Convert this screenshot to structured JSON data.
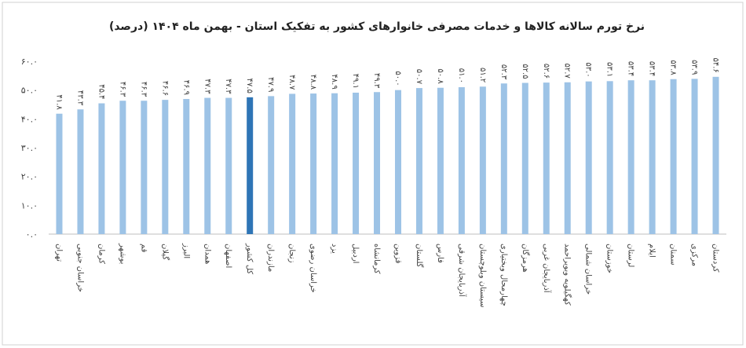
{
  "chart_data": {
    "type": "bar",
    "title": "نرخ تورم سالانه کالاها و خدمات مصرفی خانوارهای کشور به تفکیک استان - بهمن ماه ۱۴۰۴ (درصد)",
    "categories": [
      "تهران",
      "خراسان جنوبی",
      "کرمان",
      "بوشهر",
      "قم",
      "گیلان",
      "البرز",
      "همدان",
      "اصفهان",
      "کل کشور",
      "مازندران",
      "زنجان",
      "خراسان رضوی",
      "یزد",
      "اردبیل",
      "کرمانشاه",
      "قزوین",
      "گلستان",
      "فارس",
      "آذربایجان شرقی",
      "سیستان وبلوچستان",
      "چهارمحال وبختیاری",
      "هرمزگان",
      "آذربایجان غربی",
      "کهگیلویه وبویراحمد",
      "خراسان شمالی",
      "خوزستان",
      "لرستان",
      "ایلام",
      "سمنان",
      "مرکزی",
      "کردستان"
    ],
    "values": [
      41.8,
      43.3,
      45.4,
      46.3,
      46.3,
      46.6,
      46.9,
      47.3,
      47.3,
      47.5,
      47.9,
      48.7,
      48.8,
      48.9,
      49.1,
      49.3,
      50.0,
      50.7,
      50.8,
      51.0,
      51.2,
      52.3,
      52.5,
      52.6,
      52.7,
      53.0,
      53.1,
      53.4,
      53.4,
      53.8,
      53.9,
      54.6
    ],
    "value_labels": [
      "۴۱.۸",
      "۴۳.۳",
      "۴۵.۴",
      "۴۶.۳",
      "۴۶.۳",
      "۴۶.۶",
      "۴۶.۹",
      "۴۷.۳",
      "۴۷.۳",
      "۴۷.۵",
      "۴۷.۹",
      "۴۸.۷",
      "۴۸.۸",
      "۴۸.۹",
      "۴۹.۱",
      "۴۹.۳",
      "۵۰.۰",
      "۵۰.۷",
      "۵۰.۸",
      "۵۱.۰",
      "۵۱.۲",
      "۵۲.۳",
      "۵۲.۵",
      "۵۲.۶",
      "۵۲.۷",
      "۵۳.۰",
      "۵۳.۱",
      "۵۳.۴",
      "۵۳.۴",
      "۵۳.۸",
      "۵۳.۹",
      "۵۴.۶"
    ],
    "colors": [
      "#9dc3e6",
      "#9dc3e6",
      "#9dc3e6",
      "#9dc3e6",
      "#9dc3e6",
      "#9dc3e6",
      "#9dc3e6",
      "#9dc3e6",
      "#9dc3e6",
      "#2e75b6",
      "#9dc3e6",
      "#9dc3e6",
      "#9dc3e6",
      "#9dc3e6",
      "#9dc3e6",
      "#9dc3e6",
      "#9dc3e6",
      "#9dc3e6",
      "#9dc3e6",
      "#9dc3e6",
      "#9dc3e6",
      "#9dc3e6",
      "#9dc3e6",
      "#9dc3e6",
      "#9dc3e6",
      "#9dc3e6",
      "#9dc3e6",
      "#9dc3e6",
      "#9dc3e6",
      "#9dc3e6",
      "#9dc3e6",
      "#9dc3e6"
    ],
    "ylim": [
      0,
      60
    ],
    "yticks": [
      {
        "value": 0,
        "label": "۰.۰"
      },
      {
        "value": 10,
        "label": "۱۰.۰"
      },
      {
        "value": 20,
        "label": "۲۰.۰"
      },
      {
        "value": 30,
        "label": "۳۰.۰"
      },
      {
        "value": 40,
        "label": "۴۰.۰"
      },
      {
        "value": 50,
        "label": "۵۰.۰"
      },
      {
        "value": 60,
        "label": "۶۰.۰"
      }
    ],
    "grid": false
  }
}
